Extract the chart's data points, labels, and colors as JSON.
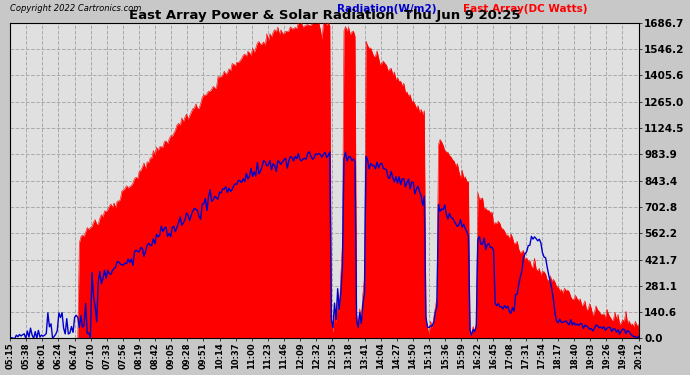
{
  "title": "East Array Power & Solar Radiation  Thu Jun 9 20:25",
  "copyright": "Copyright 2022 Cartronics.com",
  "legend_radiation": "Radiation(W/m2)",
  "legend_east_array": "East Array(DC Watts)",
  "yticks": [
    0.0,
    140.6,
    281.1,
    421.7,
    562.2,
    702.8,
    843.4,
    983.9,
    1124.5,
    1265.0,
    1405.6,
    1546.2,
    1686.7
  ],
  "ymax": 1686.7,
  "ymin": 0.0,
  "background_color": "#c8c8c8",
  "plot_bg_color": "#e8e8e8",
  "radiation_color": "#ff0000",
  "array_color": "#0000cc",
  "grid_color": "#aaaaaa",
  "title_color": "#000000",
  "time_labels": [
    "05:15",
    "05:38",
    "06:01",
    "06:24",
    "06:47",
    "07:10",
    "07:33",
    "07:56",
    "08:19",
    "08:42",
    "09:05",
    "09:28",
    "09:51",
    "10:14",
    "10:37",
    "11:00",
    "11:23",
    "11:46",
    "12:09",
    "12:32",
    "12:55",
    "13:18",
    "13:41",
    "14:04",
    "14:27",
    "14:50",
    "15:13",
    "15:36",
    "15:59",
    "16:22",
    "16:45",
    "17:08",
    "17:31",
    "17:54",
    "18:17",
    "18:40",
    "19:03",
    "19:26",
    "19:49",
    "20:12"
  ]
}
